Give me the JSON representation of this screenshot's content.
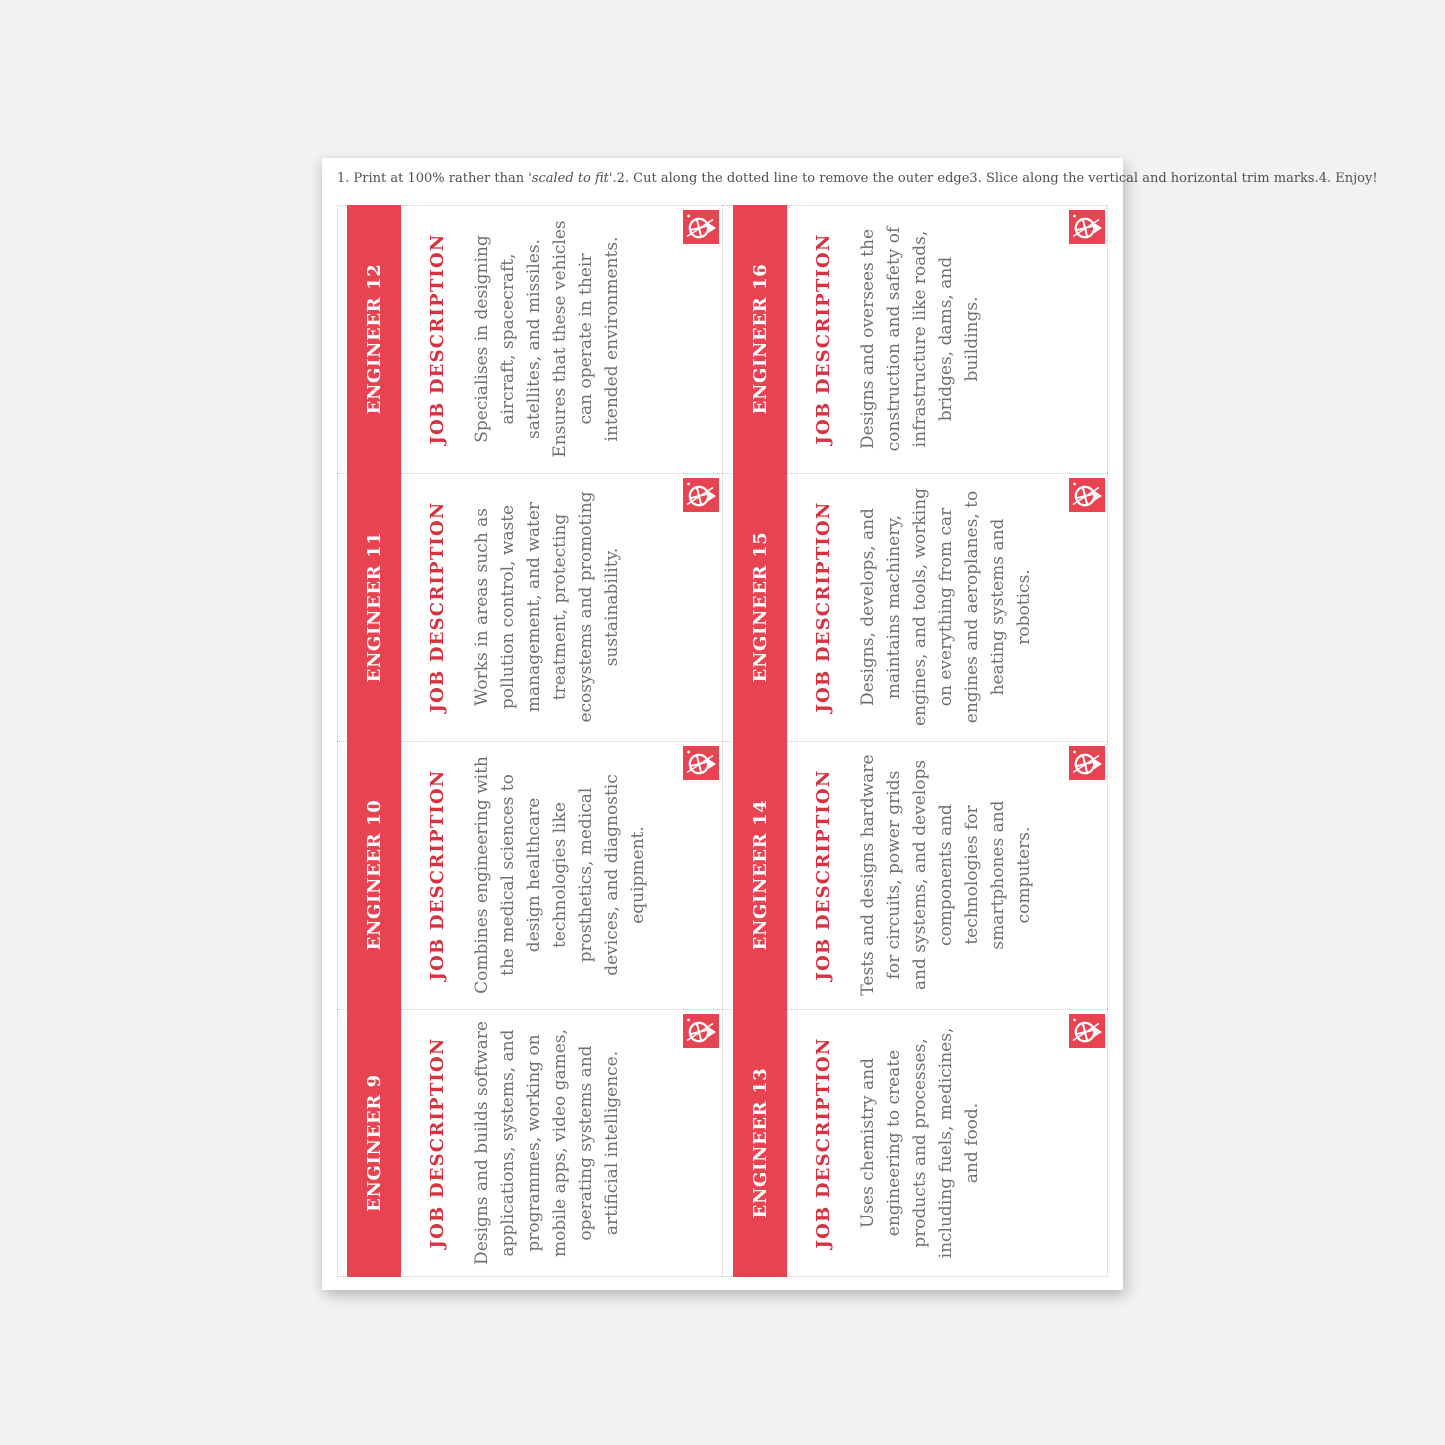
{
  "colors": {
    "band_red": "#e84350",
    "label_red": "#d5333f",
    "body_gray": "#6e6f72",
    "page_bg": "#f2f2f3",
    "trim_dotted": "#c7c8ca"
  },
  "instructions": [
    {
      "prefix": "1. Print at 100% rather than ",
      "italic": "'scaled to fit'."
    },
    {
      "text": "2. Cut along the dotted line to remove the outer edge"
    },
    {
      "text": "3. Slice along the vertical and horizontal trim marks."
    },
    {
      "text": "4. Enjoy!"
    }
  ],
  "cards": [
    {
      "title": "ENGINEER 12",
      "label": "JOB DESCRIPTION",
      "description": "Specialises in designing aircraft, spacecraft, satellites, and missiles. Ensures that these vehicles can operate in their intended environments."
    },
    {
      "title": "ENGINEER 16",
      "label": "JOB DESCRIPTION",
      "description": "Designs and oversees the construction and safety of infrastructure like roads, bridges, dams, and buildings."
    },
    {
      "title": "ENGINEER 11",
      "label": "JOB DESCRIPTION",
      "description": "Works in areas such as pollution control, waste management, and water treatment, protecting ecosystems and promoting sustainability."
    },
    {
      "title": "ENGINEER 15",
      "label": "JOB DESCRIPTION",
      "description": "Designs, develops, and maintains machinery, engines, and tools, working on everything from car engines and aeroplanes, to heating systems and robotics."
    },
    {
      "title": "ENGINEER 10",
      "label": "JOB DESCRIPTION",
      "description": "Combines engineering with the medical sciences to design healthcare technologies like prosthetics, medical devices, and diagnostic equipment."
    },
    {
      "title": "ENGINEER 14",
      "label": "JOB DESCRIPTION",
      "description": "Tests and designs hardware for circuits, power grids and systems, and develops components and technologies for smartphones and computers."
    },
    {
      "title": "ENGINEER 9",
      "label": "JOB DESCRIPTION",
      "description": "Designs and builds software applications, systems, and programmes, working on mobile apps, video games, operating systems and artificial intelligence."
    },
    {
      "title": "ENGINEER 13",
      "label": "JOB DESCRIPTION",
      "description": "Uses chemistry and engineering to create products and processes, including fuels, medicines, and food."
    }
  ],
  "logo": {
    "name": "engineering-wheel-logo"
  }
}
